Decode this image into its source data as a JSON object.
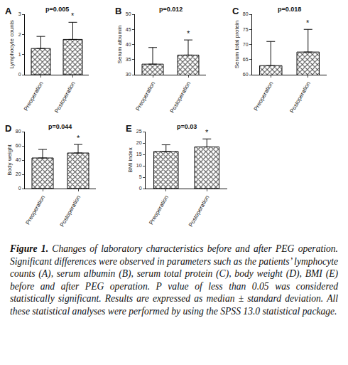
{
  "chart_data": [
    {
      "type": "bar",
      "panel": "A",
      "title": "p=0.005",
      "y_label": "Lymphocyte counts",
      "categories": [
        "Preoperation",
        "Postoperation"
      ],
      "values": [
        1.3,
        1.75
      ],
      "errors": [
        0.6,
        0.85
      ],
      "ylim": [
        0,
        3
      ],
      "yticks": [
        0,
        1,
        2,
        3
      ],
      "grid": false,
      "annotations": [
        {
          "category": "Postoperation",
          "text": "*"
        }
      ]
    },
    {
      "type": "bar",
      "panel": "B",
      "title": "p=0.012",
      "y_label": "Serum albumin",
      "categories": [
        "Preoperation",
        "Postoperation"
      ],
      "values": [
        33.5,
        36.5
      ],
      "errors": [
        5.5,
        5
      ],
      "ylim": [
        30,
        50
      ],
      "yticks": [
        30,
        35,
        40,
        45,
        50
      ],
      "grid": false,
      "annotations": [
        {
          "category": "Postoperation",
          "text": "*"
        }
      ]
    },
    {
      "type": "bar",
      "panel": "C",
      "title": "p=0.018",
      "y_label": "Serum total protein",
      "categories": [
        "Preoperation",
        "Postoperation"
      ],
      "values": [
        63,
        67.5
      ],
      "errors": [
        8,
        7.5
      ],
      "ylim": [
        60,
        80
      ],
      "yticks": [
        60,
        65,
        70,
        75,
        80
      ],
      "grid": false,
      "annotations": [
        {
          "category": "Postoperation",
          "text": "*"
        }
      ]
    },
    {
      "type": "bar",
      "panel": "D",
      "title": "p=0.044",
      "y_label": "Body weight",
      "categories": [
        "Preoperation",
        "Postoperation"
      ],
      "values": [
        43,
        50
      ],
      "errors": [
        12,
        12
      ],
      "ylim": [
        0,
        80
      ],
      "yticks": [
        0,
        20,
        40,
        60,
        80
      ],
      "grid": false,
      "annotations": [
        {
          "category": "Postoperation",
          "text": "*"
        }
      ]
    },
    {
      "type": "bar",
      "panel": "E",
      "title": "p=0.03",
      "y_label": "BMI index",
      "categories": [
        "Preoperation",
        "Postoperation"
      ],
      "values": [
        16.3,
        18.3
      ],
      "errors": [
        2.9,
        3.5
      ],
      "ylim": [
        0,
        25
      ],
      "yticks": [
        0,
        5,
        10,
        15,
        20,
        25
      ],
      "grid": false,
      "annotations": [
        {
          "category": "Postoperation",
          "text": "*"
        }
      ]
    }
  ],
  "caption": {
    "label": "Figure 1.",
    "text": "Changes of laboratory characteristics before and after PEG operation. Significant differences were observed in parameters such as the patients’ lymphocyte counts (A), serum albumin (B), serum total protein (C), body weight (D), BMI (E) before and after PEG operation. P value of less than 0.05 was considered statistically significant. Results are expressed as median ± standard deviation. All these statistical analyses were performed by using the SPSS 13.0 statistical package."
  }
}
